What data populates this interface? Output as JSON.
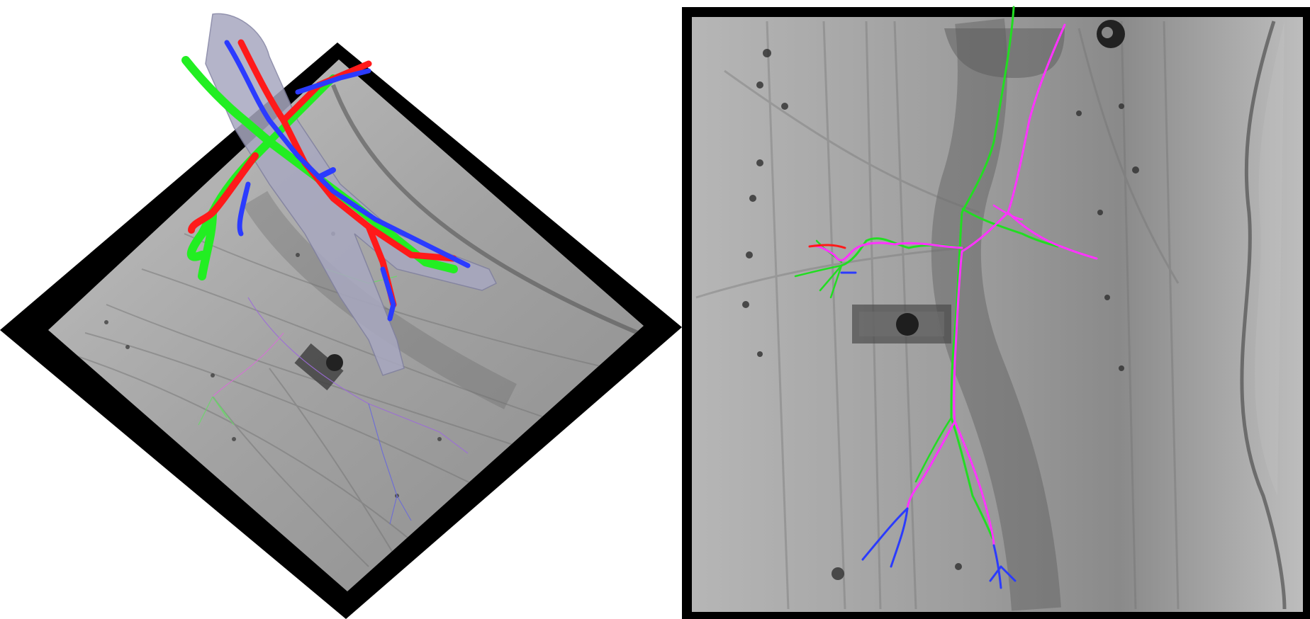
{
  "panels": [
    {
      "id": "left",
      "description_hidden": true
    },
    {
      "id": "right",
      "description_hidden": true
    }
  ],
  "colors": {
    "background": "#ffffff",
    "frame": "#000000",
    "xray_light": "#b4b4b4",
    "xray_mid": "#8f8f8f",
    "xray_dark": "#5a5a5a",
    "vessel_red": "#ff1a1a",
    "vessel_green": "#22ee22",
    "vessel_blue": "#2b3bff",
    "vessel_magenta": "#ff33ff",
    "model_gray": "#a8a8c0"
  }
}
